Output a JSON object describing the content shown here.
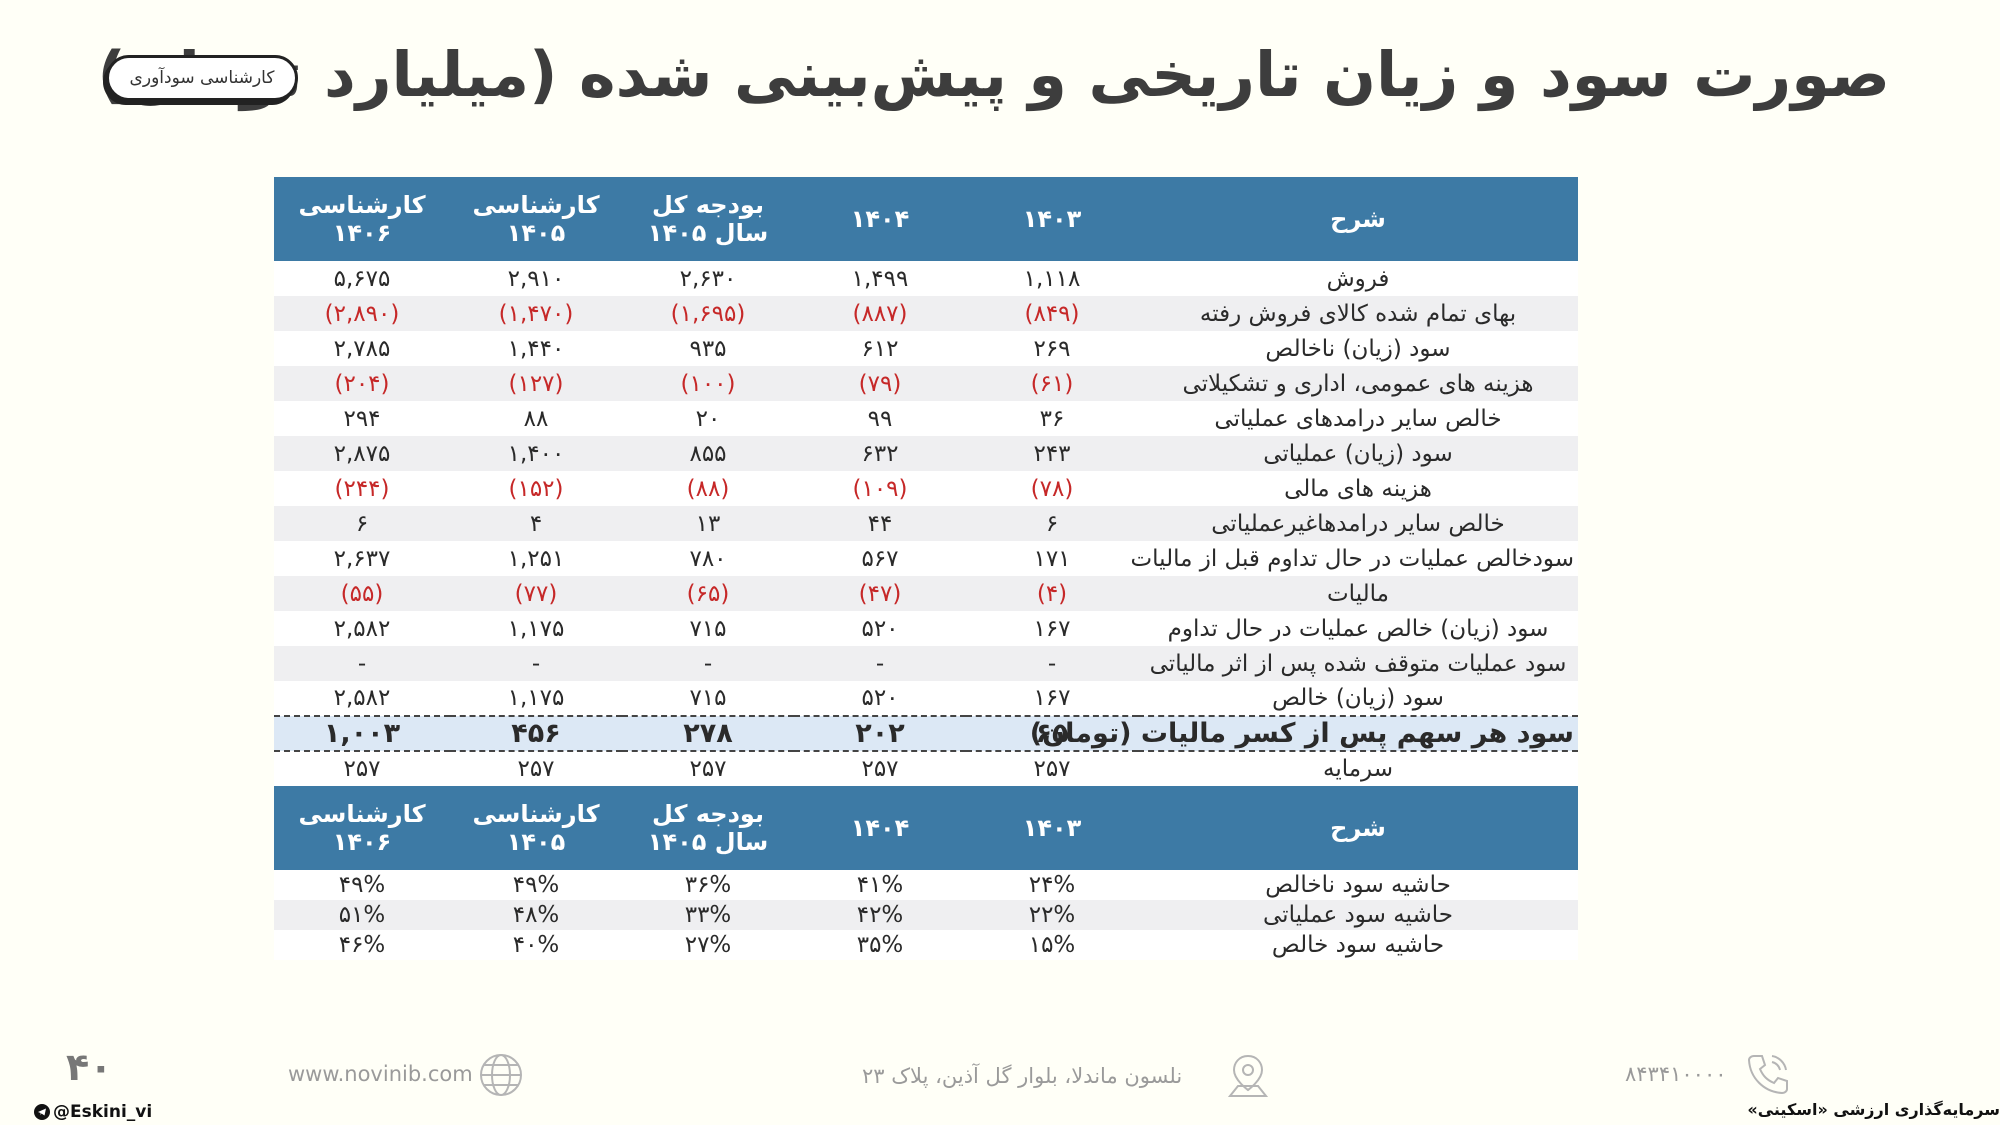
{
  "title": "صورت سود و زیان تاریخی و پیش‌بینی شده (میلیارد تومان)",
  "badge": "کارشناسی سودآوری",
  "table_headers": [
    "شرح",
    "۱۴۰۳",
    "۱۴۰۴",
    "بودجه کل سال ۱۴۰۵",
    "کارشناسی ۱۴۰۵",
    "کارشناسی ۱۴۰۶"
  ],
  "income_rows": [
    {
      "label": "فروش",
      "values": [
        "۱,۱۱۸",
        "۱,۴۹۹",
        "۲,۶۳۰",
        "۲,۹۱۰",
        "۵,۶۷۵"
      ],
      "negative": false
    },
    {
      "label": "بهای تمام شده کالای فروش رفته",
      "values": [
        "(۸۴۹)",
        "(۸۸۷)",
        "(۱,۶۹۵)",
        "(۱,۴۷۰)",
        "(۲,۸۹۰)"
      ],
      "negative": true
    },
    {
      "label": "سود (زیان) ناخالص",
      "values": [
        "۲۶۹",
        "۶۱۲",
        "۹۳۵",
        "۱,۴۴۰",
        "۲,۷۸۵"
      ],
      "negative": false
    },
    {
      "label": "هزینه های عمومی، اداری و تشکیلاتی",
      "values": [
        "(۶۱)",
        "(۷۹)",
        "(۱۰۰)",
        "(۱۲۷)",
        "(۲۰۴)"
      ],
      "negative": true
    },
    {
      "label": "خالص سایر درامدهای  عملیاتی",
      "values": [
        "۳۶",
        "۹۹",
        "۲۰",
        "۸۸",
        "۲۹۴"
      ],
      "negative": false
    },
    {
      "label": "سود (زیان) عملیاتی",
      "values": [
        "۲۴۳",
        "۶۳۲",
        "۸۵۵",
        "۱,۴۰۰",
        "۲,۸۷۵"
      ],
      "negative": false
    },
    {
      "label": "هزینه های مالی",
      "values": [
        "(۷۸)",
        "(۱۰۹)",
        "(۸۸)",
        "(۱۵۲)",
        "(۲۴۴)"
      ],
      "negative": true
    },
    {
      "label": "خالص سایر درامدهاغیرعملیاتی",
      "values": [
        "۶",
        "۴۴",
        "۱۳",
        "۴",
        "۶"
      ],
      "negative": false
    },
    {
      "label": "سودخالص عملیات در حال تداوم قبل از مالیات",
      "values": [
        "۱۷۱",
        "۵۶۷",
        "۷۸۰",
        "۱,۲۵۱",
        "۲,۶۳۷"
      ],
      "negative": false
    },
    {
      "label": "مالیات",
      "values": [
        "(۴)",
        "(۴۷)",
        "(۶۵)",
        "(۷۷)",
        "(۵۵)"
      ],
      "negative": true
    },
    {
      "label": "سود (زیان) خالص عملیات در حال تداوم",
      "values": [
        "۱۶۷",
        "۵۲۰",
        "۷۱۵",
        "۱,۱۷۵",
        "۲,۵۸۲"
      ],
      "negative": false
    },
    {
      "label": "سود عملیات متوقف شده پس از اثر مالیاتی",
      "values": [
        "-",
        "-",
        "-",
        "-",
        "-"
      ],
      "negative": false
    },
    {
      "label": "سود (زیان) خالص",
      "values": [
        "۱۶۷",
        "۵۲۰",
        "۷۱۵",
        "۱,۱۷۵",
        "۲,۵۸۲"
      ],
      "negative": false
    },
    {
      "label": "سود هر سهم پس از کسر مالیات (تومان)",
      "values": [
        "۶۵",
        "۲۰۲",
        "۲۷۸",
        "۴۵۶",
        "۱,۰۰۳"
      ],
      "negative": false,
      "highlight": true
    },
    {
      "label": "سرمایه",
      "values": [
        "۲۵۷",
        "۲۵۷",
        "۲۵۷",
        "۲۵۷",
        "۲۵۷"
      ],
      "negative": false
    }
  ],
  "margin_rows": [
    {
      "label": "حاشیه سود ناخالص",
      "values": [
        "۲۴%",
        "۴۱%",
        "۳۶%",
        "۴۹%",
        "۴۹%"
      ]
    },
    {
      "label": "حاشیه سود عملیاتی",
      "values": [
        "۲۲%",
        "۴۲%",
        "۳۳%",
        "۴۸%",
        "۵۱%"
      ]
    },
    {
      "label": "حاشیه سود خالص",
      "values": [
        "۱۵%",
        "۳۵%",
        "۲۷%",
        "۴۰%",
        "۴۶%"
      ]
    }
  ],
  "footer": {
    "website": "www.novinib.com",
    "address": "نلسون ماندلا، بلوار گل آذین، پلاک ۲۳",
    "phone": "۸۴۳۴۱۰۰۰۰",
    "page_number": "۴۰",
    "handle": "@Eskini_vi",
    "brand": "سرمایه‌گذاری ارزشی «اسکینی»"
  },
  "colors": {
    "header_bg": "#3d7aa5",
    "negative": "#c62828",
    "highlight_bg": "#dce8f5",
    "page_bg": "#fffff7"
  }
}
